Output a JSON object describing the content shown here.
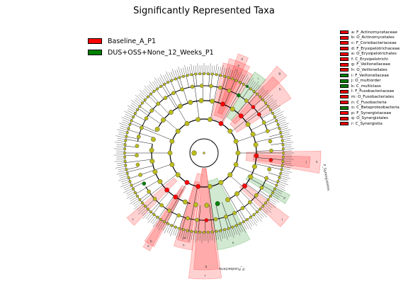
{
  "chart_data": {
    "type": "cladogram",
    "title": "Significantly Represented Taxa",
    "classes": [
      {
        "name": "Baseline_A_P1",
        "color": "#ff0000"
      },
      {
        "name": "DUS+OSS+None_12_Weeks_P1",
        "color": "#008000"
      }
    ],
    "node_color": "#bcbc1a",
    "biomarkers": [
      {
        "key": "a",
        "label": "a: F_Actinomycetaceae",
        "class": "Baseline_A_P1"
      },
      {
        "key": "b",
        "label": "b: O_Actinomycetales",
        "class": "Baseline_A_P1"
      },
      {
        "key": "c",
        "label": "c: F_Coriobacteriaceae",
        "class": "Baseline_A_P1"
      },
      {
        "key": "d",
        "label": "d: F_Erysipelotrichaceae",
        "class": "Baseline_A_P1"
      },
      {
        "key": "e",
        "label": "e: O_Erysipelotrichales",
        "class": "Baseline_A_P1"
      },
      {
        "key": "f",
        "label": "f: C_Erysipelotrichi",
        "class": "Baseline_A_P1"
      },
      {
        "key": "g",
        "label": "g: F_Veillonellaceae",
        "class": "Baseline_A_P1"
      },
      {
        "key": "h",
        "label": "h: O_Veillonellales",
        "class": "Baseline_A_P1"
      },
      {
        "key": "i",
        "label": "i: F_Veillonellaceae",
        "class": "DUS+OSS+None_12_Weeks_P1"
      },
      {
        "key": "j",
        "label": "j: O_multiorder",
        "class": "DUS+OSS+None_12_Weeks_P1"
      },
      {
        "key": "k",
        "label": "k: C_multiclass",
        "class": "DUS+OSS+None_12_Weeks_P1"
      },
      {
        "key": "l",
        "label": "l: F_Fusobacteriaceae",
        "class": "Baseline_A_P1"
      },
      {
        "key": "m",
        "label": "m: O_Fusobacteriales",
        "class": "Baseline_A_P1"
      },
      {
        "key": "n",
        "label": "n: C_Fusobacteria",
        "class": "Baseline_A_P1"
      },
      {
        "key": "o",
        "label": "o: C_Betaproteobacteria",
        "class": "DUS+OSS+None_12_Weeks_P1"
      },
      {
        "key": "p",
        "label": "p: F_Synergistaceae",
        "class": "Baseline_A_P1"
      },
      {
        "key": "q",
        "label": "q: O_Synergistales",
        "class": "Baseline_A_P1"
      },
      {
        "key": "r",
        "label": "r: C_Synergistia",
        "class": "Baseline_A_P1"
      }
    ],
    "phylum_labels": [
      "P_Synergistetes",
      "P_Fusobacteria"
    ]
  }
}
